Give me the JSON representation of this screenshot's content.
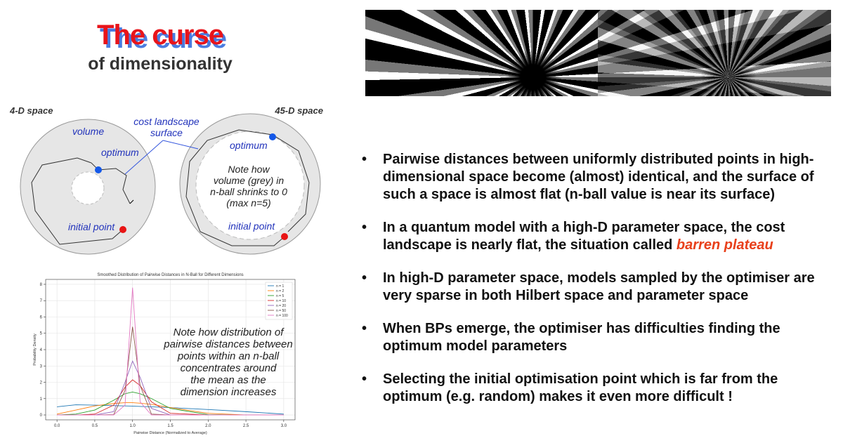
{
  "title": {
    "main": "The curse",
    "sub": "of dimensionality"
  },
  "diagram": {
    "left_label": "4-D space",
    "right_label": "45-D space",
    "volume": "volume",
    "cost_surface": [
      "cost landscape",
      "surface"
    ],
    "optimum_left": "optimum",
    "optimum_right": "optimum",
    "initial_left": "initial point",
    "initial_right": "initial point",
    "note": [
      "Note how",
      "volume (grey) in",
      "n-ball shrinks to 0",
      "(max n=5)"
    ]
  },
  "chart_data": {
    "type": "line",
    "title": "Smoothed Distribution of Pairwise Distances in N-Ball for Different Dimensions",
    "x_label": "Pairwise Distance (Normalized to Average)",
    "y_label": "Probability Density",
    "x": [
      0,
      0.25,
      0.5,
      0.75,
      0.9,
      1.0,
      1.1,
      1.25,
      1.5,
      2,
      2.5,
      3
    ],
    "series": [
      {
        "name": "n = 1",
        "color": "#1f77b4",
        "values": [
          0.5,
          0.62,
          0.6,
          0.57,
          0.55,
          0.54,
          0.52,
          0.5,
          0.45,
          0.33,
          0.2,
          0.05
        ]
      },
      {
        "name": "n = 2",
        "color": "#ff7f0e",
        "values": [
          0.05,
          0.3,
          0.55,
          0.7,
          0.75,
          0.75,
          0.72,
          0.65,
          0.45,
          0.1,
          0,
          0
        ]
      },
      {
        "name": "n = 5",
        "color": "#2ca02c",
        "values": [
          0,
          0.05,
          0.3,
          0.9,
          1.3,
          1.4,
          1.3,
          1.0,
          0.4,
          0.02,
          0,
          0
        ]
      },
      {
        "name": "n = 10",
        "color": "#d62728",
        "values": [
          0,
          0,
          0.05,
          0.6,
          1.7,
          2.15,
          1.8,
          0.8,
          0.1,
          0,
          0,
          0
        ]
      },
      {
        "name": "n = 20",
        "color": "#9467bd",
        "values": [
          0,
          0,
          0,
          0.2,
          2.0,
          3.3,
          2.3,
          0.4,
          0,
          0,
          0,
          0
        ]
      },
      {
        "name": "n = 50",
        "color": "#8c564b",
        "values": [
          0,
          0,
          0,
          0.02,
          1.5,
          5.4,
          1.8,
          0.05,
          0,
          0,
          0,
          0
        ]
      },
      {
        "name": "n = 100",
        "color": "#e377c2",
        "values": [
          0,
          0,
          0,
          0,
          0.6,
          7.8,
          0.8,
          0,
          0,
          0,
          0,
          0
        ]
      }
    ],
    "xlim": [
      -0.15,
      3.15
    ],
    "ylim": [
      -0.3,
      8.3
    ],
    "xticks": [
      {
        "value": 0,
        "label": "0.0"
      },
      {
        "value": 0.5,
        "label": "0.5"
      },
      {
        "value": 1,
        "label": "1.0"
      },
      {
        "value": 1.5,
        "label": "1.5"
      },
      {
        "value": 2,
        "label": "2.0"
      },
      {
        "value": 2.5,
        "label": "2.5"
      },
      {
        "value": 3,
        "label": "3.0"
      }
    ],
    "yticks": [
      0,
      1,
      2,
      3,
      4,
      5,
      6,
      7,
      8
    ],
    "grid": true,
    "legend": "upper right",
    "annotation": [
      "Note how distribution of",
      "pairwise distances between",
      "points within an n-ball",
      "concentrates around",
      "the mean as the",
      "dimension increases"
    ]
  },
  "bullets": [
    {
      "text": "Pairwise distances between uniformly distributed points in high-dimensional space become (almost) identical, and the surface of such a space is almost flat (n-ball value is near its surface)"
    },
    {
      "text": "In a quantum model with a high-D parameter space, the cost landscape is nearly flat, the situation called",
      "highlight": "barren plateau"
    },
    {
      "text": "In high-D parameter space, models sampled by the optimiser are very sparse in both Hilbert space and parameter space"
    },
    {
      "text": "When BPs emerge, the optimiser has difficulties finding the optimum model parameters"
    },
    {
      "text": "Selecting the initial optimisation point which is far from the optimum (e.g. random) makes it even more difficult !"
    }
  ]
}
